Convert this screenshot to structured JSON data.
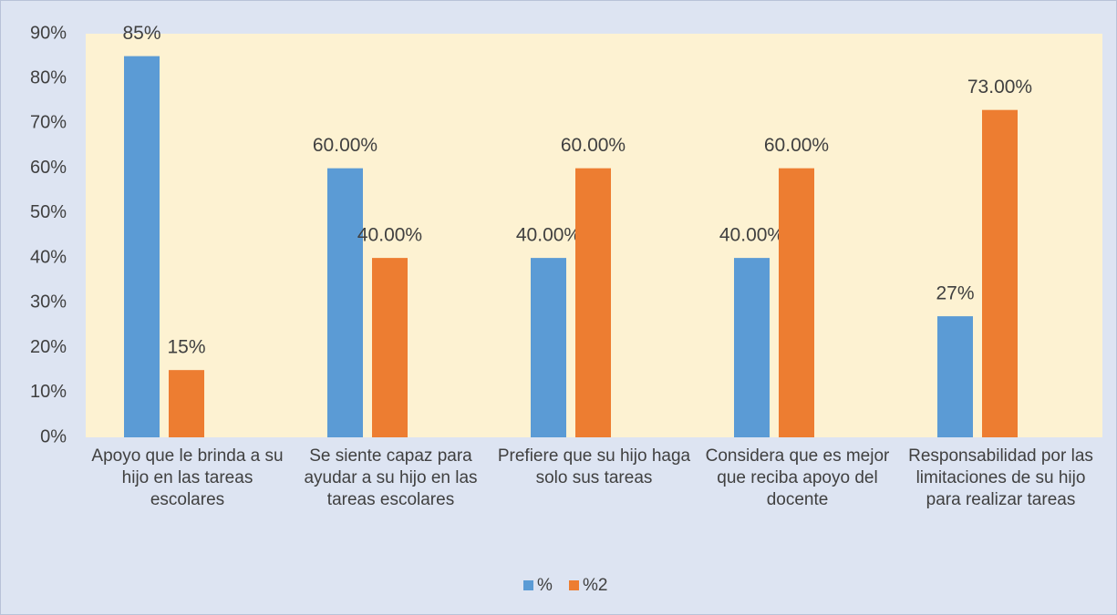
{
  "chart_data": {
    "type": "bar",
    "categories": [
      "Apoyo que le brinda a su hijo en las tareas escolares",
      "Se siente capaz para ayudar a su hijo en las tareas escolares",
      "Prefiere que su hijo haga solo sus tareas",
      "Considera que es mejor que reciba apoyo del docente",
      "Responsabilidad por las limitaciones de su hijo para realizar tareas"
    ],
    "series": [
      {
        "name": "%",
        "color": "#5b9bd5",
        "values": [
          85,
          60,
          40,
          40,
          27
        ],
        "value_labels": [
          "85%",
          "60.00%",
          "40.00%",
          "40.00%",
          "27%"
        ]
      },
      {
        "name": "%2",
        "color": "#ed7d31",
        "values": [
          15,
          40,
          60,
          60,
          73
        ],
        "value_labels": [
          "15%",
          "40.00%",
          "60.00%",
          "60.00%",
          "73.00%"
        ]
      }
    ],
    "ylim": [
      0,
      90
    ],
    "yticks": [
      {
        "value": 0,
        "label": "0%"
      },
      {
        "value": 10,
        "label": "10%"
      },
      {
        "value": 20,
        "label": "20%"
      },
      {
        "value": 30,
        "label": "30%"
      },
      {
        "value": 40,
        "label": "40%"
      },
      {
        "value": 50,
        "label": "50%"
      },
      {
        "value": 60,
        "label": "60%"
      },
      {
        "value": 70,
        "label": "70%"
      },
      {
        "value": 80,
        "label": "80%"
      },
      {
        "value": 90,
        "label": "90%"
      }
    ],
    "legend": "bottom"
  }
}
